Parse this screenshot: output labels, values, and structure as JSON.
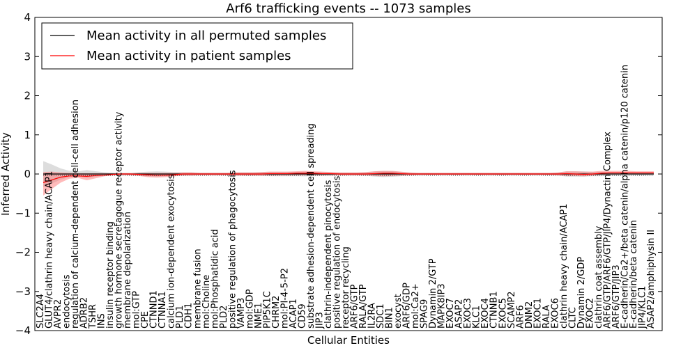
{
  "chart_data": {
    "type": "line",
    "title": "Arf6 trafficking events -- 1073 samples",
    "xlabel": "Cellular Entities",
    "ylabel": "Inferred Activity",
    "ylim": [
      -4,
      4
    ],
    "yticks": [
      -4,
      -3,
      -2,
      -1,
      0,
      1,
      2,
      3,
      4
    ],
    "grid": false,
    "legend": {
      "position": "top-left",
      "entries": [
        {
          "label": "Mean activity in all permuted samples",
          "color": "#000000"
        },
        {
          "label": "Mean activity in patient samples",
          "color": "#ff0000"
        }
      ]
    },
    "categories": [
      "SLC2A4",
      "GLUT4/clathrin heavy chain/ACAP1",
      "AVPR2",
      "endocytosis",
      "regulation of calcium-dependent cell-cell adhesion",
      "ADRB2",
      "TSHR",
      "INS",
      "insulin receptor binding",
      "growth hormone secretagogue receptor activity",
      "membrane depolarization",
      "mol:GTP",
      "CPE",
      "CTNND1",
      "CTNNA1",
      "calcium ion-dependent exocytosis",
      "PLD1",
      "CDH1",
      "membrane fusion",
      "mol:Choline",
      "mol:Phosphatidic acid",
      "PLD2",
      "positive regulation of phagocytosis",
      "VAMP3",
      "mol:GDP",
      "NME1",
      "PIP5K1C",
      "CHRM2",
      "mol:PI-4-5-P2",
      "ACAP1",
      "CD59",
      "substrate adhesion-dependent cell spreading",
      "JIP3",
      "clathrin-independent pinocytosis",
      "positive regulation of endocytosis",
      "receptor recycling",
      "ARF6/GTP",
      "RALA/GTP",
      "IL2RA",
      "SDC1",
      "BIN1",
      "exocyst",
      "ARF6/GDP",
      "mol:Ca2+",
      "SPAG9",
      "Dynamin 2/GTP",
      "MAPK8IP3",
      "EXOC7",
      "ASAP2",
      "EXOC3",
      "KLC1",
      "EXOC4",
      "CTNNB1",
      "EXOC5",
      "SCAMP2",
      "ARF6",
      "DNM2",
      "EXOC1",
      "RALA",
      "EXOC6",
      "clathrin heavy chain/ACAP1",
      "CLTC",
      "Dynamin 2/GDP",
      "EXOC2",
      "clathrin coat assembly",
      "ARF6/GTP/ARF6/GTP/JIP4/Dynactin Complex",
      "ARF6/GTP/JIP3",
      "E-cadherin/Ca2+/beta catenin/alpha catenin/p120 catenin",
      "E-cadherin/beta catenin",
      "JIP4/KLC1",
      "ASAP2/amphiphysin II"
    ],
    "series": [
      {
        "name": "Mean activity in all permuted samples",
        "color": "#000000",
        "values": [
          0,
          0,
          0,
          0,
          0,
          0,
          0,
          0,
          0,
          0,
          0,
          0,
          0,
          0,
          0,
          0,
          0,
          0,
          0,
          0,
          0,
          0,
          0,
          0,
          0,
          0,
          0,
          0,
          0,
          0,
          0,
          0,
          0,
          0,
          0,
          0,
          0,
          0,
          0,
          0,
          0,
          0,
          0,
          0,
          0,
          0,
          0,
          0,
          0,
          0,
          0,
          0,
          0,
          0,
          0,
          0,
          0,
          0,
          0,
          0,
          0,
          0,
          0,
          0,
          0,
          0,
          0,
          0,
          0,
          0,
          0
        ]
      },
      {
        "name": "Mean activity in patient samples",
        "color": "#ff0000",
        "values": [
          -0.22,
          -0.15,
          -0.08,
          -0.05,
          -0.05,
          -0.06,
          -0.04,
          -0.03,
          -0.01,
          0.0,
          0.0,
          -0.01,
          -0.02,
          -0.03,
          -0.03,
          -0.02,
          0.0,
          0.0,
          0.0,
          0.0,
          0.0,
          0.0,
          0.0,
          0.0,
          0.0,
          0.0,
          0.01,
          0.01,
          0.01,
          0.02,
          0.02,
          0.02,
          0.01,
          0.01,
          0.0,
          0.0,
          0.0,
          0.0,
          0.01,
          0.02,
          0.02,
          0.01,
          0.0,
          0.0,
          0.0,
          0.0,
          0.0,
          0.0,
          0.0,
          0.0,
          0.0,
          0.0,
          0.0,
          0.0,
          0.0,
          0.0,
          0.0,
          0.0,
          0.0,
          0.0,
          0.01,
          0.0,
          -0.01,
          0.0,
          0.02,
          0.03,
          0.03,
          0.03,
          0.03,
          0.03,
          0.03
        ],
        "lower": [
          -0.55,
          -0.38,
          -0.22,
          -0.12,
          -0.1,
          -0.16,
          -0.11,
          -0.06,
          -0.03,
          -0.02,
          -0.03,
          -0.05,
          -0.08,
          -0.09,
          -0.08,
          -0.06,
          -0.04,
          -0.04,
          -0.03,
          -0.03,
          -0.03,
          -0.03,
          -0.04,
          -0.04,
          -0.04,
          -0.04,
          -0.04,
          -0.04,
          -0.04,
          -0.03,
          -0.03,
          -0.03,
          -0.03,
          -0.03,
          -0.03,
          -0.03,
          -0.03,
          -0.03,
          -0.05,
          -0.06,
          -0.05,
          -0.04,
          -0.03,
          -0.02,
          -0.02,
          -0.02,
          -0.02,
          -0.02,
          -0.02,
          -0.02,
          -0.02,
          -0.02,
          -0.02,
          -0.02,
          -0.02,
          -0.02,
          -0.02,
          -0.02,
          -0.02,
          -0.03,
          -0.05,
          -0.05,
          -0.06,
          -0.04,
          -0.02,
          -0.01,
          -0.01,
          0.0,
          0.0,
          0.0,
          0.0
        ],
        "upper": [
          0.05,
          0.06,
          0.04,
          0.03,
          0.02,
          0.02,
          0.02,
          0.02,
          0.02,
          0.02,
          0.02,
          0.03,
          0.03,
          0.03,
          0.03,
          0.03,
          0.04,
          0.04,
          0.03,
          0.03,
          0.03,
          0.03,
          0.04,
          0.04,
          0.04,
          0.05,
          0.06,
          0.06,
          0.06,
          0.07,
          0.08,
          0.07,
          0.06,
          0.05,
          0.04,
          0.04,
          0.04,
          0.05,
          0.07,
          0.08,
          0.08,
          0.06,
          0.04,
          0.03,
          0.03,
          0.03,
          0.03,
          0.03,
          0.03,
          0.03,
          0.03,
          0.03,
          0.03,
          0.03,
          0.03,
          0.03,
          0.03,
          0.03,
          0.03,
          0.04,
          0.07,
          0.07,
          0.06,
          0.06,
          0.08,
          0.08,
          0.08,
          0.08,
          0.07,
          0.07,
          0.07
        ]
      }
    ]
  }
}
